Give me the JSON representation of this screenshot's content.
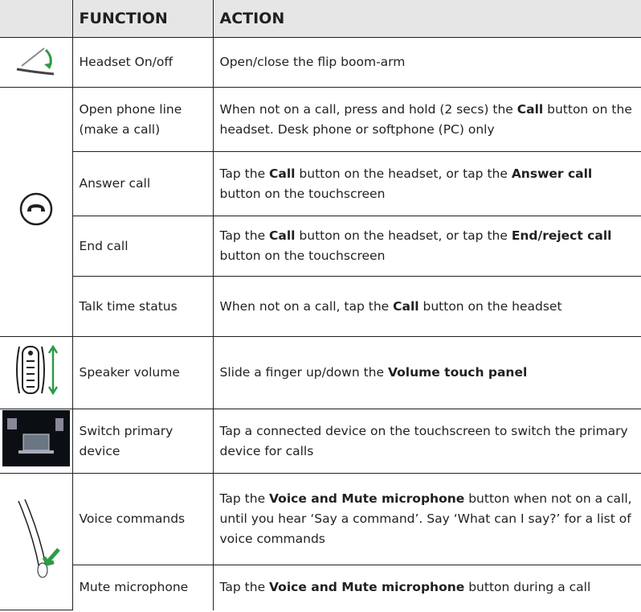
{
  "table": {
    "header": [
      "FUNCTION",
      "ACTION"
    ],
    "rows": [
      {
        "function": "Headset On/off",
        "action": [
          {
            "text": "Open/close the flip boom-arm"
          }
        ]
      },
      {
        "function": "Open phone line (make a call)",
        "action": [
          {
            "text": "When not on a call, press and hold (2 secs) the "
          },
          {
            "text": "Call",
            "bold": true
          },
          {
            "text": " button on the headset. Desk phone or softphone (PC) only"
          }
        ]
      },
      {
        "function": "Answer call",
        "action": [
          {
            "text": "Tap the "
          },
          {
            "text": "Call",
            "bold": true
          },
          {
            "text": " button on the headset, or tap the "
          },
          {
            "text": "Answer call",
            "bold": true
          },
          {
            "text": " button on the touchscreen"
          }
        ]
      },
      {
        "function": "End call",
        "action": [
          {
            "text": "Tap the "
          },
          {
            "text": "Call",
            "bold": true
          },
          {
            "text": " button on the headset, or tap the "
          },
          {
            "text": "End/reject call",
            "bold": true
          },
          {
            "text": " button on the touchscreen"
          }
        ]
      },
      {
        "function": "Talk time status",
        "action": [
          {
            "text": "When not on a call, tap the "
          },
          {
            "text": "Call",
            "bold": true
          },
          {
            "text": " button on the headset"
          }
        ]
      },
      {
        "function": "Speaker volume",
        "action": [
          {
            "text": "Slide a finger up/down the "
          },
          {
            "text": "Volume touch panel",
            "bold": true
          }
        ]
      },
      {
        "function": "Switch primary device",
        "action": [
          {
            "text": "Tap a connected device on the touchscreen to switch the primary device for calls"
          }
        ]
      },
      {
        "function": "Voice commands",
        "action": [
          {
            "text": "Tap the "
          },
          {
            "text": "Voice and Mute microphone",
            "bold": true
          },
          {
            "text": " button when not on a call, until you hear ‘Say a command’. Say ‘What can I say?’ for a list of voice commands"
          }
        ]
      },
      {
        "function": "Mute microphone",
        "action": [
          {
            "text": "Tap the "
          },
          {
            "text": "Voice and Mute microphone",
            "bold": true
          },
          {
            "text": " button during a call"
          }
        ]
      }
    ]
  }
}
